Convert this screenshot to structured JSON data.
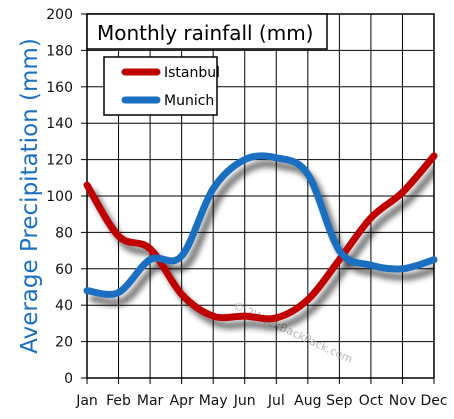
{
  "chart_data": {
    "type": "line",
    "title": "Monthly rainfall (mm)",
    "ylabel": "Average Precipitation (mm)",
    "xlabel": "",
    "categories": [
      "Jan",
      "Feb",
      "Mar",
      "Apr",
      "May",
      "Jun",
      "Jul",
      "Aug",
      "Sep",
      "Oct",
      "Nov",
      "Dec"
    ],
    "ylim": [
      0,
      200
    ],
    "yticks": [
      0,
      20,
      40,
      60,
      80,
      100,
      120,
      140,
      160,
      180,
      200
    ],
    "grid": true,
    "legend_position": "top-left",
    "watermark": "© 2WeekBackPack.com",
    "series": [
      {
        "name": "Istanbul",
        "color": "#c00000",
        "values": [
          106,
          78,
          71,
          46,
          34,
          34,
          33,
          43,
          65,
          88,
          102,
          122
        ]
      },
      {
        "name": "Munich",
        "color": "#1a6fc0",
        "values": [
          48,
          47,
          65,
          67,
          104,
          120,
          121,
          112,
          70,
          62,
          60,
          65
        ]
      }
    ],
    "colors": {
      "ylabel": "#1a6fc0",
      "grid": "#000000",
      "shadow": "#000000"
    }
  }
}
